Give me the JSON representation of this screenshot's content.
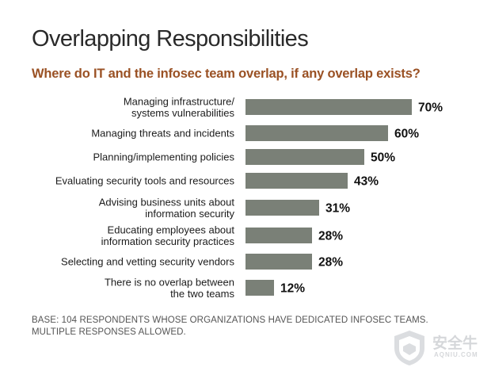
{
  "title": "Overlapping Responsibilities",
  "subtitle": "Where do IT and the infosec team overlap, if any overlap exists?",
  "footnote": "BASE: 104 RESPONDENTS WHOSE ORGANIZATIONS HAVE DEDICATED INFOSEC TEAMS. MULTIPLE RESPONSES ALLOWED.",
  "watermark": {
    "name": "安全牛",
    "site": "AQNIU.COM"
  },
  "colors": {
    "bar": "#7a8077",
    "title": "#2a2a2a",
    "subtitle": "#9a5124"
  },
  "chart_data": {
    "type": "bar",
    "orientation": "horizontal",
    "title": "Overlapping Responsibilities",
    "subtitle": "Where do IT and the infosec team overlap, if any overlap exists?",
    "categories": [
      [
        "Managing infrastructure/",
        "systems vulnerabilities"
      ],
      [
        "Managing threats and incidents"
      ],
      [
        "Planning/implementing policies"
      ],
      [
        "Evaluating security tools and resources"
      ],
      [
        "Advising business units about",
        "information security"
      ],
      [
        "Educating employees about",
        "information security practices"
      ],
      [
        "Selecting and vetting security vendors"
      ],
      [
        "There is no overlap between",
        "the two teams"
      ]
    ],
    "values": [
      70,
      60,
      50,
      43,
      31,
      28,
      28,
      12
    ],
    "value_labels": [
      "70%",
      "60%",
      "50%",
      "43%",
      "31%",
      "28%",
      "28%",
      "12%"
    ],
    "unit": "%",
    "xlim": [
      0,
      100
    ],
    "grid": false,
    "legend": "none"
  }
}
